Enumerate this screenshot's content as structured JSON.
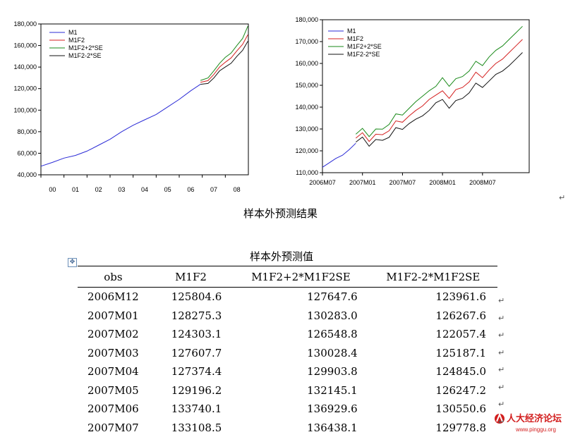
{
  "charts": {
    "left": {
      "title": "",
      "y_ticks": [
        "180,000",
        "160,000",
        "140,000",
        "120,000",
        "100,000",
        "80,000",
        "60,000",
        "40,000"
      ],
      "x_ticks": [
        "00",
        "01",
        "02",
        "03",
        "04",
        "05",
        "06",
        "07",
        "08"
      ],
      "legend": [
        "M1",
        "M1F2",
        "M1F2+2*SE",
        "M1F2-2*SE"
      ]
    },
    "right": {
      "title": "",
      "y_ticks": [
        "180,000",
        "170,000",
        "160,000",
        "150,000",
        "140,000",
        "130,000",
        "120,000",
        "110,000"
      ],
      "x_ticks": [
        "2006M07",
        "2007M01",
        "2007M07",
        "2008M01",
        "2008M07"
      ],
      "legend": [
        "M1",
        "M1F2",
        "M1F2+2*SE",
        "M1F2-2*SE"
      ]
    }
  },
  "chart_data": [
    {
      "type": "line",
      "title": "",
      "xlabel": "",
      "ylabel": "",
      "ylim": [
        40000,
        180000
      ],
      "x_ticks": [
        "00",
        "01",
        "02",
        "03",
        "04",
        "05",
        "06",
        "07",
        "08"
      ],
      "legend_position": "top-left",
      "series": [
        {
          "name": "M1",
          "color": "#2b2bd6",
          "x": [
            2000.0,
            2000.5,
            2001.0,
            2001.5,
            2002.0,
            2002.5,
            2003.0,
            2003.5,
            2004.0,
            2004.5,
            2005.0,
            2005.5,
            2006.0,
            2006.5,
            2006.92
          ],
          "y": [
            48000,
            51500,
            55500,
            58000,
            62000,
            67500,
            73000,
            80000,
            86000,
            91000,
            96000,
            103000,
            110000,
            118000,
            124000
          ]
        },
        {
          "name": "M1F2",
          "color": "#d42020",
          "x": [
            2006.92,
            2007.25,
            2007.5,
            2007.75,
            2008.0,
            2008.25,
            2008.5,
            2008.75,
            2008.98
          ],
          "y": [
            125800,
            127400,
            133100,
            140000,
            144500,
            148500,
            155000,
            161000,
            170000
          ]
        },
        {
          "name": "M1F2+2*SE",
          "color": "#1a8a1a",
          "x": [
            2006.92,
            2007.25,
            2007.5,
            2007.75,
            2008.0,
            2008.25,
            2008.5,
            2008.75,
            2008.98
          ],
          "y": [
            127600,
            129900,
            136400,
            143500,
            149000,
            153000,
            160000,
            166500,
            178000
          ]
        },
        {
          "name": "M1F2-2*SE",
          "color": "#111111",
          "x": [
            2006.92,
            2007.25,
            2007.5,
            2007.75,
            2008.0,
            2008.25,
            2008.5,
            2008.75,
            2008.98
          ],
          "y": [
            124000,
            124800,
            129800,
            136500,
            140000,
            143500,
            150000,
            155500,
            164000
          ]
        }
      ]
    },
    {
      "type": "line",
      "title": "",
      "xlabel": "",
      "ylabel": "",
      "ylim": [
        110000,
        180000
      ],
      "x_ticks": [
        "2006M07",
        "2007M01",
        "2007M07",
        "2008M01",
        "2008M07"
      ],
      "legend_position": "top-left",
      "series": [
        {
          "name": "M1",
          "color": "#2b2bd6",
          "x": [
            0,
            1,
            2,
            3,
            4,
            5
          ],
          "y": [
            112500,
            114500,
            116500,
            118000,
            120500,
            123500
          ]
        },
        {
          "name": "M1F2",
          "color": "#d42020",
          "x": [
            5,
            6,
            7,
            8,
            9,
            10,
            11,
            12,
            13,
            14,
            15,
            16,
            17,
            18,
            19,
            20,
            21,
            22,
            23,
            24,
            25,
            26,
            27,
            28,
            29,
            30
          ],
          "y": [
            125800,
            128300,
            124300,
            127600,
            127400,
            129200,
            133700,
            133100,
            136000,
            138500,
            140500,
            143500,
            145500,
            147500,
            144000,
            148000,
            149000,
            151500,
            156000,
            153500,
            157000,
            160000,
            162000,
            165000,
            168000,
            171000
          ]
        },
        {
          "name": "M1F2+2*SE",
          "color": "#1a8a1a",
          "x": [
            5,
            6,
            7,
            8,
            9,
            10,
            11,
            12,
            13,
            14,
            15,
            16,
            17,
            18,
            19,
            20,
            21,
            22,
            23,
            24,
            25,
            26,
            27,
            28,
            29,
            30
          ],
          "y": [
            127600,
            130300,
            126500,
            130000,
            129900,
            132100,
            136900,
            136400,
            139500,
            142500,
            145000,
            147500,
            149500,
            153500,
            149500,
            153000,
            154000,
            156500,
            161000,
            159000,
            163000,
            166000,
            168000,
            171000,
            174000,
            177000
          ]
        },
        {
          "name": "M1F2-2*SE",
          "color": "#111111",
          "x": [
            5,
            6,
            7,
            8,
            9,
            10,
            11,
            12,
            13,
            14,
            15,
            16,
            17,
            18,
            19,
            20,
            21,
            22,
            23,
            24,
            25,
            26,
            27,
            28,
            29,
            30
          ],
          "y": [
            124000,
            126300,
            122100,
            125200,
            124800,
            126200,
            130600,
            129800,
            132500,
            134500,
            136000,
            138500,
            142000,
            143500,
            139500,
            143000,
            144000,
            146500,
            151000,
            149000,
            152000,
            155000,
            156500,
            159000,
            162000,
            165000
          ]
        }
      ]
    }
  ],
  "captions": {
    "figure": "样本外预测结果",
    "table": "样本外预测值"
  },
  "table": {
    "headers": [
      "obs",
      "M1F2",
      "M1F2+2*M1F2SE",
      "M1F2-2*M1F2SE"
    ],
    "rows": [
      [
        "2006M12",
        "125804.6",
        "127647.6",
        "123961.6"
      ],
      [
        "2007M01",
        "128275.3",
        "130283.0",
        "126267.6"
      ],
      [
        "2007M02",
        "124303.1",
        "126548.8",
        "122057.4"
      ],
      [
        "2007M03",
        "127607.7",
        "130028.4",
        "125187.1"
      ],
      [
        "2007M04",
        "127374.4",
        "129903.8",
        "124845.0"
      ],
      [
        "2007M05",
        "129196.2",
        "132145.1",
        "126247.2"
      ],
      [
        "2007M06",
        "133740.1",
        "136929.6",
        "130550.6"
      ],
      [
        "2007M07",
        "133108.5",
        "136438.1",
        "129778.8"
      ]
    ]
  },
  "watermark": {
    "text": "人大经济论坛",
    "url": "www.pinggu.org"
  },
  "glyphs": {
    "para_mark": "↵",
    "move_handle": "✥"
  }
}
